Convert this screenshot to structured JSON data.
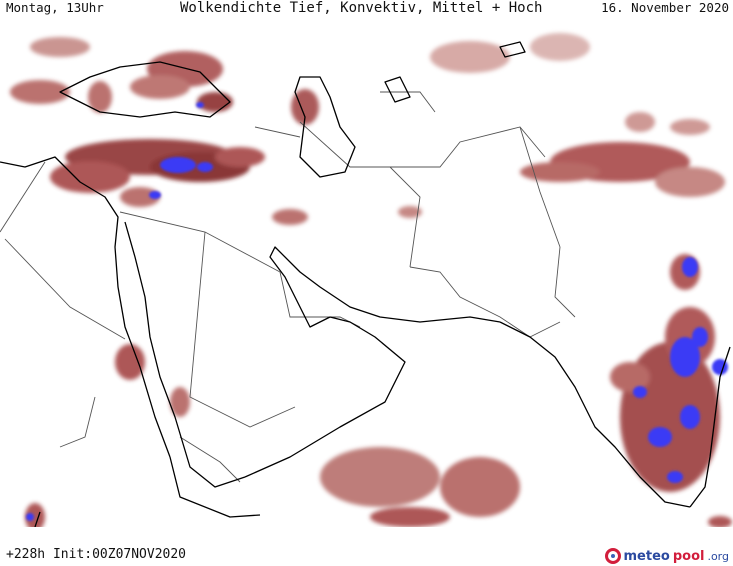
{
  "header": {
    "valid_time": "Montag, 13Uhr",
    "title": "Wolkendichte  Tief, Konvektiv, Mittel + Hoch",
    "date": "16. November 2020"
  },
  "footer": {
    "run_info": "+228h Init:00Z07NOV2020",
    "brand": {
      "part1": "meteo",
      "part2": "pool",
      "part3": ".org"
    }
  },
  "colors": {
    "cloud_dark": "#7a1e1e",
    "cloud_mid": "#a84a4a",
    "cloud_light": "#d9a7a3",
    "convective": "#3a3af5",
    "coast": "#000000",
    "border": "#555555"
  }
}
